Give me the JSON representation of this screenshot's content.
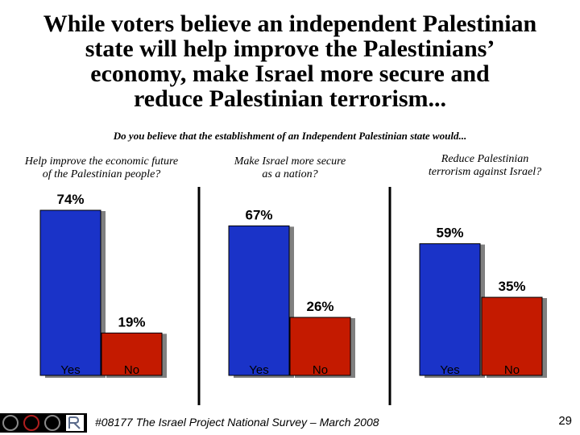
{
  "title": {
    "lines": [
      "While voters believe an independent Palestinian",
      "state will help improve the Palestinians’",
      "economy, make Israel more secure and",
      "reduce Palestinian terrorism..."
    ]
  },
  "subtitle": "Do you believe that the establishment of an Independent Palestinian state would...",
  "questions": [
    {
      "lines": [
        "Help improve the economic future",
        "of the Palestinian people?"
      ]
    },
    {
      "lines": [
        "Make Israel more secure",
        "as a nation?"
      ]
    },
    {
      "lines": [
        "Reduce Palestinian",
        "terrorism against Israel?"
      ]
    }
  ],
  "chart_data": {
    "type": "bar",
    "title": "Do you believe that the establishment of an Independent Palestinian state would...",
    "categories": [
      "Yes",
      "No"
    ],
    "series_colors": {
      "Yes": "#1a33c8",
      "No": "#c41a00"
    },
    "ylim": [
      0,
      100
    ],
    "groups": [
      {
        "name": "Help improve the economic future of the Palestinian people?",
        "values": [
          74,
          19
        ],
        "labels": [
          "74%",
          "19%"
        ]
      },
      {
        "name": "Make Israel more secure as a nation?",
        "values": [
          67,
          26
        ],
        "labels": [
          "67%",
          "26%"
        ]
      },
      {
        "name": "Reduce Palestinian terrorism against Israel?",
        "values": [
          59,
          35
        ],
        "labels": [
          "59%",
          "35%"
        ]
      }
    ]
  },
  "footer": {
    "text": "#08177 The Israel Project National Survey – March 2008",
    "page_number": "29"
  },
  "colors": {
    "shadow": "#808080",
    "divider": "#000000"
  }
}
